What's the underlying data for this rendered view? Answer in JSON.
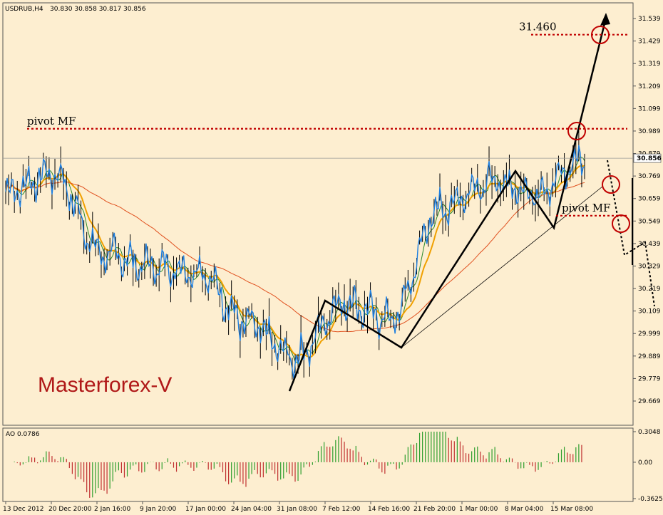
{
  "window": {
    "symbol_timeframe": "USDRUB,H4",
    "ohlc": "30.830 30.858 30.817 30.856",
    "brand": "Masterforex-V"
  },
  "colors": {
    "background": "#fdeed0",
    "price": "#1e7fe0",
    "bars": "#000000",
    "ma_fast": "#2a8a2a",
    "ma_mid": "#f0a000",
    "ma_slow": "#e0501e",
    "pivot": "#c00000",
    "ao_up": "#2e9e2e",
    "ao_down": "#c03030"
  },
  "chart_data": [
    {
      "type": "line",
      "title": "USDRUB,H4",
      "x": [
        "13 Dec 2012",
        "20 Dec 20:00",
        "2 Jan 16:00",
        "9 Jan 20:00",
        "17 Jan 00:00",
        "24 Jan 04:00",
        "31 Jan 08:00",
        "7 Feb 12:00",
        "14 Feb 16:00",
        "21 Feb 20:00",
        "1 Mar 00:00",
        "8 Mar 04:00",
        "15 Mar 08:00"
      ],
      "series": [
        {
          "values": [
            30.69,
            30.78,
            30.39,
            30.33,
            30.3,
            30.05,
            29.88,
            30.15,
            30.07,
            30.61,
            30.74,
            30.69,
            30.85
          ]
        }
      ],
      "ytick_labels": [
        "31.539",
        "31.429",
        "31.319",
        "31.209",
        "31.099",
        "30.989",
        "30.879",
        "30.769",
        "30.659",
        "30.549",
        "30.439",
        "30.329",
        "30.219",
        "30.109",
        "29.999",
        "29.889",
        "29.779",
        "29.669"
      ],
      "ylim": [
        29.669,
        31.539
      ],
      "last_price": "30.856",
      "annotations": [
        {
          "text": "pivot MF",
          "value": 31.0
        },
        {
          "text": "pivot MF",
          "value": 30.575
        },
        {
          "text": "31.460",
          "value": 31.46
        }
      ],
      "grid": false
    },
    {
      "type": "bar",
      "title": "AO 0.0786",
      "ytick_labels": [
        "0.3048",
        "0.00",
        "-0.3625"
      ],
      "ylim": [
        -0.3625,
        0.3048
      ]
    }
  ]
}
